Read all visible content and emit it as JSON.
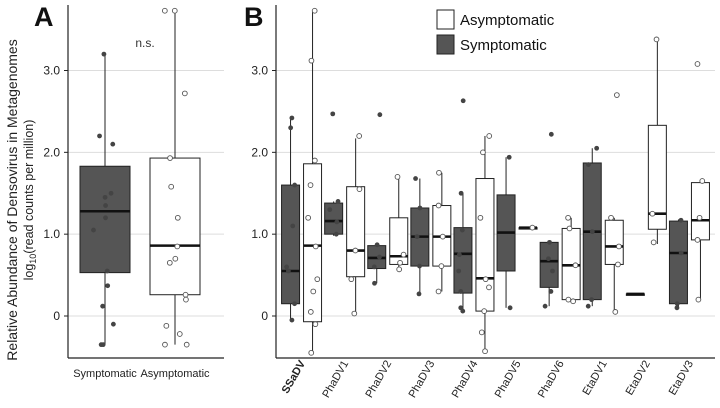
{
  "colors": {
    "symptomatic_fill": "#555555",
    "asymptomatic_fill": "#ffffff",
    "box_stroke": "#222222",
    "grid": "#dddddd",
    "point_symptomatic": "#444444",
    "point_asymptomatic_stroke": "#555555"
  },
  "chart_data": [
    {
      "panel": "A",
      "type": "box",
      "ylabel": "Relative Abundance of Densovirus in Metagenomes",
      "ylabel_sub_prefix": "log",
      "ylabel_sub_base": "10",
      "ylabel_sub_suffix": "(read counts per million)",
      "ylim": [
        -0.5,
        3.85
      ],
      "yticks": [
        {
          "value": 0,
          "label": "0"
        },
        {
          "value": 1,
          "label": "1.0"
        },
        {
          "value": 2,
          "label": "2.0"
        },
        {
          "value": 3,
          "label": "3.0"
        }
      ],
      "grid": true,
      "annotation": "n.s.",
      "groups": [
        {
          "label": "Symptomatic",
          "kind": "symptomatic",
          "box": {
            "min": -0.35,
            "q1": 0.53,
            "median": 1.28,
            "q3": 1.83,
            "max": 3.2
          },
          "points": [
            3.2,
            2.2,
            2.1,
            1.5,
            1.45,
            1.35,
            1.2,
            1.05,
            0.55,
            0.37,
            0.12,
            -0.1,
            -0.35,
            -0.35
          ]
        },
        {
          "label": "Asymptomatic",
          "kind": "asymptomatic",
          "box": {
            "min": -0.35,
            "q1": 0.26,
            "median": 0.86,
            "q3": 1.93,
            "max": 3.73
          },
          "points": [
            3.73,
            3.73,
            2.72,
            1.93,
            1.58,
            1.2,
            0.85,
            0.7,
            0.65,
            0.26,
            0.2,
            -0.12,
            -0.22,
            -0.35,
            -0.35
          ]
        }
      ]
    },
    {
      "panel": "B",
      "type": "box",
      "ylim": [
        -0.5,
        3.85
      ],
      "yticks": [
        {
          "value": 0,
          "label": "0"
        },
        {
          "value": 1,
          "label": "1.0"
        },
        {
          "value": 2,
          "label": "2.0"
        },
        {
          "value": 3,
          "label": "3.0"
        }
      ],
      "grid": true,
      "legend_position": "top",
      "legend": [
        {
          "label": "Asymptomatic",
          "kind": "asymptomatic"
        },
        {
          "label": "Symptomatic",
          "kind": "symptomatic"
        }
      ],
      "categories": [
        {
          "label": "SSaDV",
          "bold": true,
          "symptomatic": {
            "box": {
              "min": -0.05,
              "q1": 0.15,
              "median": 0.55,
              "q3": 1.6,
              "max": 2.42
            },
            "points": [
              2.42,
              2.3,
              1.6,
              1.1,
              0.6,
              0.55,
              0.15,
              -0.05
            ]
          },
          "asymptomatic": {
            "box": {
              "min": -0.45,
              "q1": -0.07,
              "median": 0.86,
              "q3": 1.86,
              "max": 3.73
            },
            "points": [
              3.73,
              3.12,
              1.9,
              1.6,
              1.2,
              0.85,
              0.45,
              0.3,
              0.05,
              -0.1,
              -0.45
            ]
          }
        },
        {
          "label": "PhaDV1",
          "symptomatic": {
            "box": {
              "min": 0.98,
              "q1": 1.0,
              "median": 1.16,
              "q3": 1.38,
              "max": 1.4
            },
            "points": [
              2.47,
              1.4,
              1.3,
              1.15,
              1.0
            ]
          },
          "asymptomatic": {
            "box": {
              "min": 0.03,
              "q1": 0.48,
              "median": 0.8,
              "q3": 1.58,
              "max": 2.17
            },
            "points": [
              2.2,
              1.55,
              0.8,
              0.45,
              0.03
            ]
          }
        },
        {
          "label": "PhaDV2",
          "symptomatic": {
            "box": {
              "min": 0.4,
              "q1": 0.58,
              "median": 0.71,
              "q3": 0.86,
              "max": 0.87
            },
            "points": [
              2.46,
              0.87,
              0.72,
              0.6,
              0.4
            ]
          },
          "asymptomatic": {
            "box": {
              "min": 0.57,
              "q1": 0.63,
              "median": 0.73,
              "q3": 1.2,
              "max": 1.68
            },
            "points": [
              1.7,
              0.75,
              0.65,
              0.57
            ]
          }
        },
        {
          "label": "PhaDV3",
          "symptomatic": {
            "box": {
              "min": 0.27,
              "q1": 0.61,
              "median": 0.97,
              "q3": 1.32,
              "max": 1.68
            },
            "points": [
              1.68,
              1.32,
              0.97,
              0.61,
              0.27
            ]
          },
          "asymptomatic": {
            "box": {
              "min": 0.3,
              "q1": 0.61,
              "median": 0.97,
              "q3": 1.35,
              "max": 1.75
            },
            "points": [
              1.75,
              1.35,
              0.97,
              0.61,
              0.3
            ]
          }
        },
        {
          "label": "PhaDV4",
          "symptomatic": {
            "box": {
              "min": 0.06,
              "q1": 0.28,
              "median": 0.76,
              "q3": 1.08,
              "max": 1.5
            },
            "points": [
              2.63,
              1.5,
              1.05,
              0.75,
              0.55,
              0.3,
              0.1,
              0.06
            ]
          },
          "asymptomatic": {
            "box": {
              "min": -0.43,
              "q1": 0.06,
              "median": 0.46,
              "q3": 1.68,
              "max": 2.2
            },
            "points": [
              2.2,
              2.0,
              1.2,
              0.45,
              0.35,
              0.06,
              -0.2,
              -0.43
            ]
          }
        },
        {
          "label": "PhaDV5",
          "symptomatic": {
            "box": {
              "min": 0.1,
              "q1": 0.55,
              "median": 1.02,
              "q3": 1.48,
              "max": 1.94
            },
            "points": [
              1.94,
              0.1
            ]
          },
          "asymptomatic": {
            "box": {
              "min": 1.08,
              "q1": 1.08,
              "median": 1.08,
              "q3": 1.08,
              "max": 1.08
            },
            "points": [
              1.08
            ]
          }
        },
        {
          "label": "PhaDV6",
          "symptomatic": {
            "box": {
              "min": 0.12,
              "q1": 0.35,
              "median": 0.67,
              "q3": 0.9,
              "max": 0.92
            },
            "points": [
              2.22,
              0.9,
              0.7,
              0.55,
              0.3,
              0.12
            ]
          },
          "asymptomatic": {
            "box": {
              "min": 0.18,
              "q1": 0.2,
              "median": 0.62,
              "q3": 1.07,
              "max": 1.2
            },
            "points": [
              1.2,
              1.07,
              0.62,
              0.2,
              0.18
            ]
          }
        },
        {
          "label": "EtaDV1",
          "symptomatic": {
            "box": {
              "min": 0.12,
              "q1": 0.2,
              "median": 1.03,
              "q3": 1.87,
              "max": 2.05
            },
            "points": [
              2.05,
              1.85,
              1.03,
              0.2,
              0.12
            ]
          },
          "asymptomatic": {
            "box": {
              "min": 0.05,
              "q1": 0.63,
              "median": 0.85,
              "q3": 1.17,
              "max": 1.2
            },
            "points": [
              2.7,
              1.2,
              0.85,
              0.63,
              0.05
            ]
          }
        },
        {
          "label": "EtaDV2",
          "symptomatic": {
            "box": {
              "min": 0.27,
              "q1": 0.27,
              "median": 0.27,
              "q3": 0.27,
              "max": 0.27
            },
            "points": []
          },
          "asymptomatic": {
            "box": {
              "min": 0.88,
              "q1": 1.06,
              "median": 1.25,
              "q3": 2.33,
              "max": 3.4
            },
            "points": [
              3.38,
              1.25,
              0.9
            ]
          }
        },
        {
          "label": "EtaDV3",
          "symptomatic": {
            "box": {
              "min": 0.1,
              "q1": 0.15,
              "median": 0.77,
              "q3": 1.16,
              "max": 1.18
            },
            "points": [
              1.17,
              0.77,
              0.15,
              0.1
            ]
          },
          "asymptomatic": {
            "box": {
              "min": 0.2,
              "q1": 0.93,
              "median": 1.17,
              "q3": 1.63,
              "max": 1.65
            },
            "points": [
              3.08,
              1.65,
              1.2,
              0.93,
              0.2
            ]
          }
        }
      ]
    }
  ]
}
